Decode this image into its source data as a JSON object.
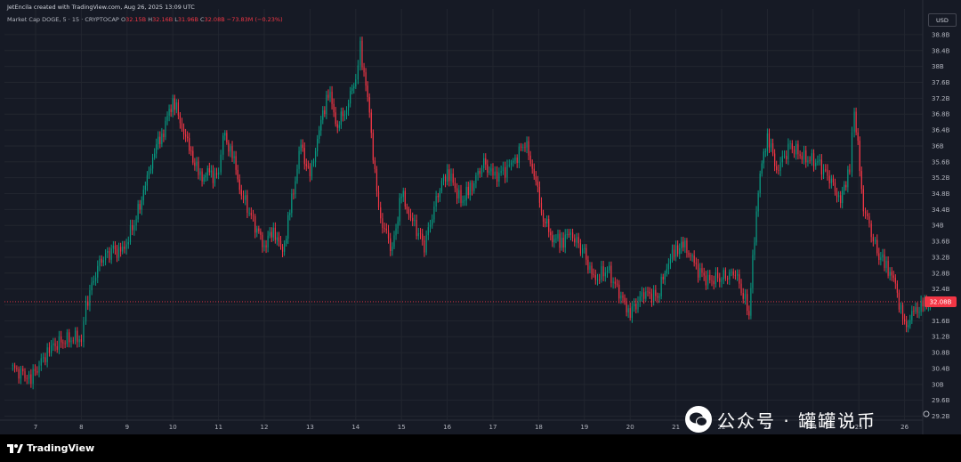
{
  "header": {
    "attribution": "JetEncila created with TradingView.com, Aug 26, 2025 13:09 UTC"
  },
  "legend": {
    "symbol": "Market Cap DOGE, 5 · 15 · CRYPTOCAP",
    "o_label": "O",
    "o_value": "32.15B",
    "h_label": "H",
    "h_value": "32.16B",
    "l_label": "L",
    "l_value": "31.96B",
    "c_label": "C",
    "c_value": "32.08B",
    "change": "−73.83M (−0.23%)"
  },
  "currency_button": "USD",
  "last_price_label": "32.08B",
  "brand": {
    "name": "TradingView"
  },
  "watermark": {
    "text": "公众号 · 罐罐说币"
  },
  "colors": {
    "background": "#161a25",
    "grid": "#22262f",
    "up": "#089981",
    "down": "#f23645",
    "axis_text": "#b2b5be"
  },
  "chart_data": {
    "type": "line",
    "title": "Market Cap DOGE",
    "xlabel": "",
    "ylabel": "",
    "x_ticks": [
      "7",
      "8",
      "9",
      "10",
      "11",
      "12",
      "13",
      "14",
      "15",
      "16",
      "17",
      "18",
      "19",
      "20",
      "21",
      "22",
      "23",
      "24",
      "25",
      "26"
    ],
    "y_ticks": [
      "38.8B",
      "38.4B",
      "38B",
      "37.6B",
      "37.2B",
      "36.8B",
      "36.4B",
      "36B",
      "35.6B",
      "35.2B",
      "34.8B",
      "34.4B",
      "34B",
      "33.6B",
      "33.2B",
      "32.8B",
      "32.4B",
      "32B",
      "31.6B",
      "31.2B",
      "30.8B",
      "30.4B",
      "30B",
      "29.6B",
      "29.2B"
    ],
    "ylim": [
      29.1,
      39.0
    ],
    "unit": "B USD",
    "grid": true,
    "last_value": 32.08,
    "series": [
      {
        "values": [
          [
            6.5,
            30.4
          ],
          [
            6.9,
            30.15
          ],
          [
            7.3,
            30.9
          ],
          [
            7.6,
            31.1
          ],
          [
            8.0,
            31.2
          ],
          [
            8.1,
            32.0
          ],
          [
            8.4,
            33.1
          ],
          [
            8.7,
            33.4
          ],
          [
            8.9,
            33.3
          ],
          [
            9.2,
            34.2
          ],
          [
            9.4,
            35.0
          ],
          [
            9.6,
            35.9
          ],
          [
            9.8,
            36.4
          ],
          [
            10.0,
            37.2
          ],
          [
            10.2,
            36.5
          ],
          [
            10.4,
            35.8
          ],
          [
            10.6,
            35.2
          ],
          [
            10.8,
            35.3
          ],
          [
            11.0,
            35.2
          ],
          [
            11.1,
            36.3
          ],
          [
            11.3,
            35.8
          ],
          [
            11.5,
            34.8
          ],
          [
            11.8,
            34.0
          ],
          [
            12.0,
            33.5
          ],
          [
            12.2,
            33.9
          ],
          [
            12.4,
            33.3
          ],
          [
            12.6,
            34.6
          ],
          [
            12.8,
            36.0
          ],
          [
            13.0,
            35.2
          ],
          [
            13.2,
            36.4
          ],
          [
            13.4,
            37.4
          ],
          [
            13.6,
            36.5
          ],
          [
            13.8,
            37.0
          ],
          [
            14.0,
            37.7
          ],
          [
            14.1,
            38.5
          ],
          [
            14.3,
            36.8
          ],
          [
            14.5,
            34.3
          ],
          [
            14.8,
            33.4
          ],
          [
            15.0,
            34.8
          ],
          [
            15.2,
            34.2
          ],
          [
            15.5,
            33.5
          ],
          [
            15.8,
            34.8
          ],
          [
            16.0,
            35.4
          ],
          [
            16.3,
            34.6
          ],
          [
            16.5,
            34.9
          ],
          [
            16.8,
            35.6
          ],
          [
            17.0,
            35.2
          ],
          [
            17.4,
            35.5
          ],
          [
            17.7,
            36.1
          ],
          [
            17.9,
            35.3
          ],
          [
            18.1,
            34.2
          ],
          [
            18.3,
            33.7
          ],
          [
            18.5,
            33.6
          ],
          [
            18.7,
            33.8
          ],
          [
            19.0,
            33.3
          ],
          [
            19.2,
            32.6
          ],
          [
            19.5,
            32.9
          ],
          [
            19.8,
            32.2
          ],
          [
            20.0,
            31.8
          ],
          [
            20.3,
            32.3
          ],
          [
            20.6,
            32.2
          ],
          [
            20.8,
            33.0
          ],
          [
            21.0,
            33.4
          ],
          [
            21.2,
            33.5
          ],
          [
            21.4,
            33.0
          ],
          [
            21.7,
            32.6
          ],
          [
            22.0,
            32.7
          ],
          [
            22.3,
            32.8
          ],
          [
            22.6,
            31.8
          ],
          [
            22.8,
            35.0
          ],
          [
            23.0,
            36.3
          ],
          [
            23.2,
            35.4
          ],
          [
            23.5,
            36.0
          ],
          [
            23.8,
            35.7
          ],
          [
            24.1,
            35.6
          ],
          [
            24.4,
            35.1
          ],
          [
            24.6,
            34.6
          ],
          [
            24.8,
            35.5
          ],
          [
            24.9,
            36.9
          ],
          [
            25.1,
            34.5
          ],
          [
            25.4,
            33.3
          ],
          [
            25.6,
            33.0
          ],
          [
            25.8,
            32.5
          ],
          [
            26.0,
            31.4
          ],
          [
            26.2,
            31.8
          ],
          [
            26.4,
            32.0
          ],
          [
            26.6,
            32.08
          ]
        ]
      }
    ]
  }
}
